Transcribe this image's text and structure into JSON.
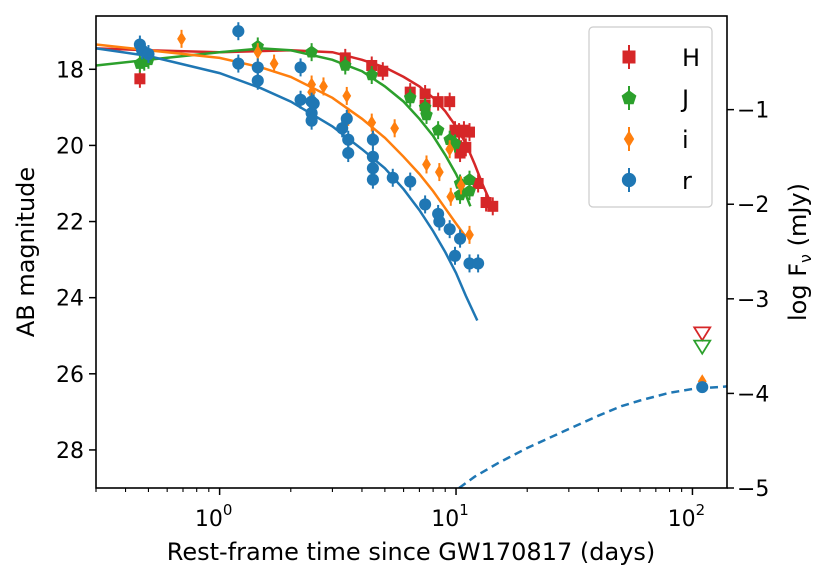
{
  "chart_data": {
    "type": "scatter",
    "xscale": "log",
    "xlim": [
      0.3,
      140
    ],
    "ylim": [
      29,
      16.6
    ],
    "y2lim": [
      -5,
      -0.01
    ],
    "xlabel": "Rest-frame time since GW170817 (days)",
    "ylabel": "AB magnitude",
    "y2label_main": "log F",
    "y2label_sub": "ν",
    "y2label_unit": " (mJy)",
    "xticks": [
      {
        "value": 1,
        "base": "10",
        "exp": "0"
      },
      {
        "value": 10,
        "base": "10",
        "exp": "1"
      },
      {
        "value": 100,
        "base": "10",
        "exp": "2"
      }
    ],
    "yticks": [
      18,
      20,
      22,
      24,
      26,
      28
    ],
    "y2ticks": [
      -1,
      -2,
      -3,
      -4,
      -5
    ],
    "legend_position": "top-right",
    "series": [
      {
        "name": "H",
        "color": "#d62728",
        "marker": "square",
        "points": [
          [
            0.46,
            18.25
          ],
          [
            3.4,
            17.7
          ],
          [
            4.4,
            17.9
          ],
          [
            4.9,
            18.05
          ],
          [
            6.4,
            18.6
          ],
          [
            7.4,
            18.65
          ],
          [
            7.4,
            18.95
          ],
          [
            8.4,
            18.85
          ],
          [
            9.4,
            18.85
          ],
          [
            9.9,
            19.6
          ],
          [
            10.3,
            19.65
          ],
          [
            10.4,
            20.2
          ],
          [
            10.5,
            20.1
          ],
          [
            10.8,
            19.6
          ],
          [
            11.0,
            20.05
          ],
          [
            11.4,
            19.65
          ],
          [
            12.4,
            21.0
          ],
          [
            13.4,
            21.5
          ],
          [
            14.3,
            21.6
          ]
        ],
        "model": [
          [
            0.3,
            17.45
          ],
          [
            0.5,
            17.5
          ],
          [
            1.0,
            17.55
          ],
          [
            2.0,
            17.5
          ],
          [
            3.0,
            17.55
          ],
          [
            4.0,
            17.75
          ],
          [
            5.0,
            17.95
          ],
          [
            6.0,
            18.2
          ],
          [
            7.0,
            18.45
          ],
          [
            8.0,
            18.75
          ],
          [
            9.0,
            19.1
          ],
          [
            10.0,
            19.5
          ],
          [
            11.0,
            19.95
          ],
          [
            12.0,
            20.5
          ],
          [
            13.0,
            21.05
          ],
          [
            14.0,
            21.5
          ]
        ]
      },
      {
        "name": "J",
        "color": "#2ca02c",
        "marker": "pentagon",
        "points": [
          [
            0.46,
            17.85
          ],
          [
            0.48,
            17.8
          ],
          [
            0.5,
            17.75
          ],
          [
            1.45,
            17.4
          ],
          [
            2.45,
            17.55
          ],
          [
            3.4,
            17.9
          ],
          [
            4.4,
            18.15
          ],
          [
            6.4,
            18.75
          ],
          [
            7.4,
            19.0
          ],
          [
            7.5,
            19.2
          ],
          [
            8.4,
            19.6
          ],
          [
            9.4,
            19.85
          ],
          [
            9.9,
            19.95
          ],
          [
            10.4,
            21.0
          ],
          [
            10.4,
            21.3
          ],
          [
            11.4,
            20.9
          ],
          [
            11.4,
            21.2
          ]
        ],
        "model": [
          [
            0.3,
            17.9
          ],
          [
            0.5,
            17.75
          ],
          [
            1.0,
            17.55
          ],
          [
            1.5,
            17.45
          ],
          [
            2.0,
            17.5
          ],
          [
            3.0,
            17.75
          ],
          [
            4.0,
            18.05
          ],
          [
            5.0,
            18.45
          ],
          [
            6.0,
            18.85
          ],
          [
            7.0,
            19.3
          ],
          [
            8.0,
            19.75
          ],
          [
            9.0,
            20.25
          ],
          [
            10.0,
            20.75
          ],
          [
            11.0,
            21.3
          ],
          [
            11.5,
            21.6
          ]
        ]
      },
      {
        "name": "i",
        "color": "#ff7f0e",
        "marker": "diamond",
        "points": [
          [
            0.69,
            17.2
          ],
          [
            1.45,
            17.55
          ],
          [
            1.7,
            17.85
          ],
          [
            2.45,
            18.4
          ],
          [
            2.45,
            18.6
          ],
          [
            2.75,
            18.45
          ],
          [
            3.45,
            18.7
          ],
          [
            3.5,
            19.25
          ],
          [
            4.4,
            19.4
          ],
          [
            4.45,
            19.8
          ],
          [
            5.5,
            19.55
          ],
          [
            7.5,
            20.5
          ],
          [
            8.5,
            20.7
          ],
          [
            9.4,
            20.1
          ],
          [
            9.5,
            21.35
          ],
          [
            10.5,
            21.05
          ],
          [
            11.4,
            22.35
          ]
        ],
        "model": [
          [
            0.3,
            17.35
          ],
          [
            0.5,
            17.5
          ],
          [
            1.0,
            17.7
          ],
          [
            1.5,
            17.95
          ],
          [
            2.0,
            18.2
          ],
          [
            3.0,
            18.75
          ],
          [
            4.0,
            19.3
          ],
          [
            5.0,
            19.8
          ],
          [
            6.0,
            20.3
          ],
          [
            7.0,
            20.75
          ],
          [
            8.0,
            21.2
          ],
          [
            9.0,
            21.65
          ],
          [
            10.0,
            22.05
          ],
          [
            11.0,
            22.4
          ]
        ]
      },
      {
        "name": "r",
        "color": "#1f77b4",
        "marker": "circle",
        "points": [
          [
            0.46,
            17.35
          ],
          [
            0.47,
            17.5
          ],
          [
            0.5,
            17.6
          ],
          [
            1.2,
            17.0
          ],
          [
            1.2,
            17.85
          ],
          [
            1.45,
            17.95
          ],
          [
            1.45,
            18.3
          ],
          [
            2.2,
            17.95
          ],
          [
            2.2,
            18.8
          ],
          [
            2.45,
            18.85
          ],
          [
            2.45,
            19.15
          ],
          [
            2.45,
            19.35
          ],
          [
            2.5,
            18.9
          ],
          [
            3.3,
            19.55
          ],
          [
            3.45,
            19.3
          ],
          [
            3.5,
            19.85
          ],
          [
            3.5,
            20.2
          ],
          [
            4.45,
            19.85
          ],
          [
            4.45,
            20.3
          ],
          [
            4.45,
            20.6
          ],
          [
            4.45,
            20.9
          ],
          [
            5.4,
            20.85
          ],
          [
            6.4,
            20.95
          ],
          [
            7.4,
            21.55
          ],
          [
            8.4,
            21.8
          ],
          [
            8.5,
            22.0
          ],
          [
            9.4,
            22.2
          ],
          [
            9.9,
            22.9
          ],
          [
            10.4,
            22.45
          ],
          [
            11.4,
            23.1
          ],
          [
            12.4,
            23.1
          ]
        ],
        "model": [
          [
            0.3,
            17.45
          ],
          [
            0.5,
            17.65
          ],
          [
            1.0,
            18.1
          ],
          [
            1.5,
            18.5
          ],
          [
            2.0,
            18.85
          ],
          [
            3.0,
            19.5
          ],
          [
            4.0,
            20.1
          ],
          [
            5.0,
            20.6
          ],
          [
            6.0,
            21.15
          ],
          [
            7.0,
            21.7
          ],
          [
            8.0,
            22.25
          ],
          [
            9.0,
            22.8
          ],
          [
            10.0,
            23.35
          ],
          [
            11.0,
            23.95
          ],
          [
            12.3,
            24.6
          ]
        ]
      }
    ],
    "upper_limits": [
      {
        "series": "H",
        "color": "#d62728",
        "x": 110,
        "y": 24.95
      },
      {
        "series": "J",
        "color": "#2ca02c",
        "x": 110,
        "y": 25.3
      }
    ],
    "late_points": [
      {
        "series": "i",
        "color": "#ff7f0e",
        "x": 110,
        "y": 26.2
      },
      {
        "series": "r",
        "color": "#1f77b4",
        "x": 110,
        "y": 26.35
      }
    ],
    "dashed_model": {
      "color": "#1f77b4",
      "points": [
        [
          10.3,
          29.0
        ],
        [
          12,
          28.7
        ],
        [
          15,
          28.35
        ],
        [
          20,
          27.95
        ],
        [
          30,
          27.45
        ],
        [
          40,
          27.1
        ],
        [
          50,
          26.85
        ],
        [
          60,
          26.7
        ],
        [
          80,
          26.5
        ],
        [
          100,
          26.4
        ],
        [
          140,
          26.33
        ]
      ]
    }
  }
}
